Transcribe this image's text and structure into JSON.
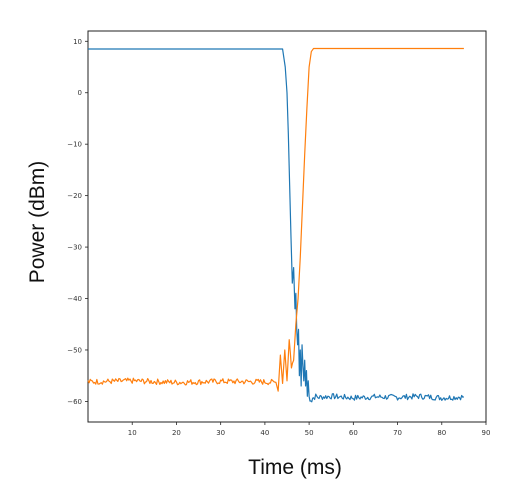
{
  "chart_data": {
    "type": "line",
    "title": "",
    "xlabel": "Time (ms)",
    "ylabel": "Power (dBm)",
    "xlim": [
      0,
      90
    ],
    "ylim": [
      -64,
      12
    ],
    "x_ticks": [
      10,
      20,
      30,
      40,
      50,
      60,
      70,
      80,
      90
    ],
    "y_ticks": [
      10,
      0,
      -10,
      -20,
      -30,
      -40,
      -50,
      -60
    ],
    "x_tick_labels": [
      "10",
      "20",
      "30",
      "40",
      "50",
      "60",
      "70",
      "80",
      "90"
    ],
    "y_tick_labels": [
      "10",
      "0",
      "−10",
      "−20",
      "−30",
      "−40",
      "−50",
      "−60"
    ],
    "grid": false,
    "legend": "none",
    "series": [
      {
        "color": "#1f77b4",
        "x": [
          0,
          10,
          20,
          30,
          40,
          44.0,
          44.6,
          45.0,
          45.3,
          45.6,
          45.9,
          46.2,
          46.5,
          46.8,
          47.0,
          47.2,
          47.4,
          47.6,
          47.8,
          48.0,
          48.2,
          48.4,
          48.6,
          48.8,
          49.0,
          49.2,
          49.4,
          49.6,
          49.8,
          50.0,
          50.2,
          50.4,
          50.6,
          50.8,
          51.0,
          51.5,
          52.0,
          55,
          60,
          65,
          70,
          75,
          80,
          85
        ],
        "y": [
          8.5,
          8.5,
          8.5,
          8.5,
          8.5,
          8.5,
          5,
          0,
          -8,
          -18,
          -28,
          -37,
          -34,
          -42,
          -39,
          -46,
          -49,
          -46,
          -55,
          -50,
          -57,
          -49,
          -53,
          -56,
          -52,
          -57,
          -54,
          -59,
          -56,
          -59,
          -60,
          -59.5,
          -59.8,
          -59.3,
          -59.3,
          -59.0,
          -59.2,
          -59.0,
          -59.3,
          -59.1,
          -59.2,
          -59.0,
          -59.3,
          -59.1
        ]
      },
      {
        "color": "#ff7f0e",
        "x": [
          0,
          10,
          20,
          30,
          40,
          42.5,
          43.0,
          43.5,
          44.0,
          44.5,
          45.0,
          45.5,
          46.0,
          46.5,
          47.0,
          47.5,
          48.0,
          48.5,
          49.0,
          49.5,
          50.0,
          50.5,
          51.0,
          52,
          55,
          60,
          70,
          80,
          85
        ],
        "y": [
          -56.2,
          -56.0,
          -56.3,
          -56.1,
          -56.2,
          -56.3,
          -58,
          -51,
          -56.5,
          -50,
          -56,
          -48,
          -53,
          -52,
          -45,
          -40,
          -32,
          -22,
          -12,
          -3,
          5,
          8,
          8.6,
          8.6,
          8.6,
          8.6,
          8.6,
          8.6,
          8.6
        ]
      }
    ]
  }
}
